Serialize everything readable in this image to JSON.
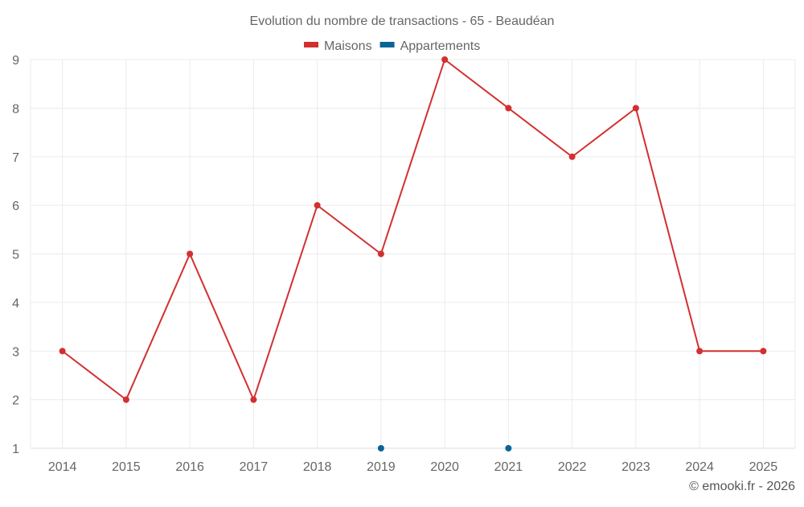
{
  "chart_data": {
    "type": "line",
    "title": "Evolution du nombre de transactions - 65 - Beaudéan",
    "categories": [
      "2014",
      "2015",
      "2016",
      "2017",
      "2018",
      "2019",
      "2020",
      "2021",
      "2022",
      "2023",
      "2024",
      "2025"
    ],
    "series": [
      {
        "name": "Maisons",
        "color": "#d32f2f",
        "values": [
          3,
          2,
          5,
          2,
          6,
          5,
          9,
          8,
          7,
          8,
          3,
          3
        ]
      },
      {
        "name": "Appartements",
        "color": "#0a6496",
        "values": [
          null,
          null,
          null,
          null,
          null,
          1,
          null,
          1,
          null,
          null,
          null,
          null
        ]
      }
    ],
    "ylim": [
      1,
      9
    ],
    "yticks": [
      1,
      2,
      3,
      4,
      5,
      6,
      7,
      8,
      9
    ],
    "grid": true,
    "legend": "top-center",
    "xlabel": "",
    "ylabel": ""
  },
  "credit": "© emooki.fr - 2026"
}
